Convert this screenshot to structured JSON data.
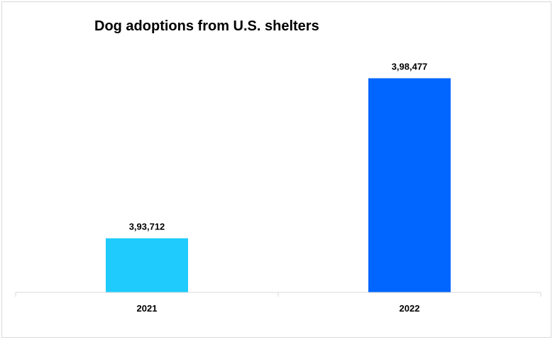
{
  "chart_data": {
    "type": "bar",
    "title": "Dog adoptions from U.S. shelters",
    "categories": [
      "2021",
      "2022"
    ],
    "values": [
      393712,
      398477
    ],
    "value_labels": [
      "3,93,712",
      "3,98,477"
    ],
    "colors": [
      "#1ecbfc",
      "#0066ff"
    ],
    "ylim": [
      392100,
      398800
    ],
    "grid": false,
    "legend": "none"
  }
}
